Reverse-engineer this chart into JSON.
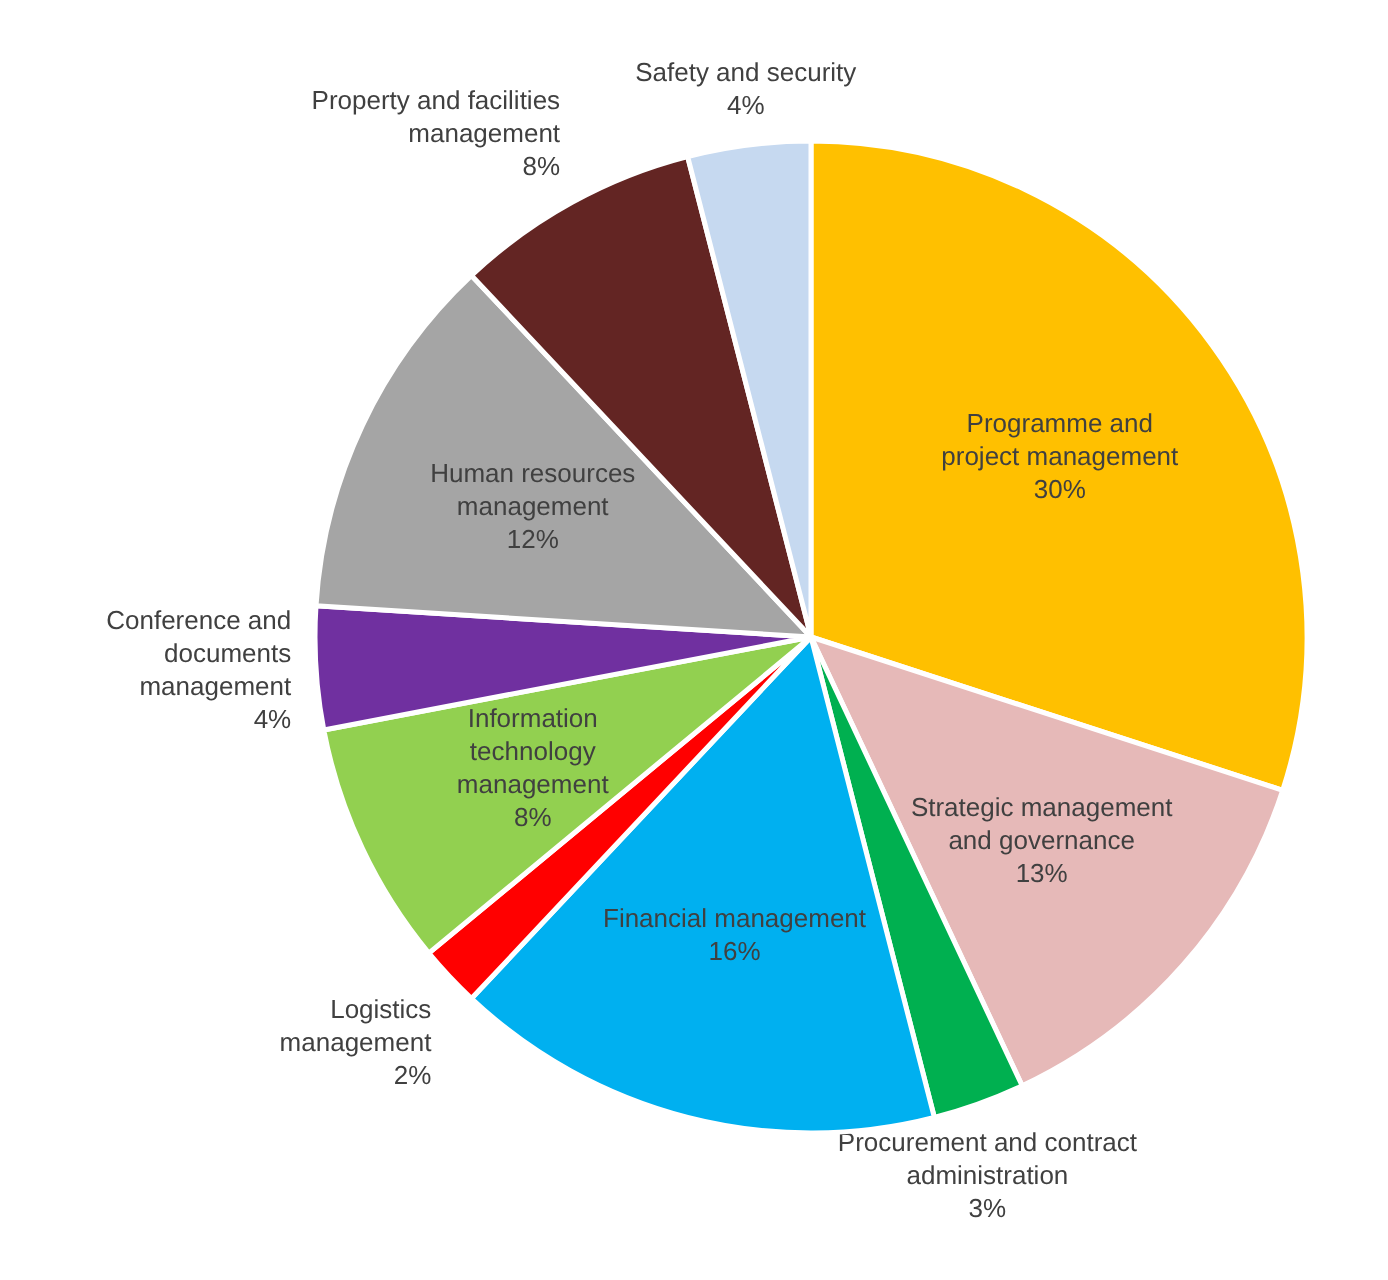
{
  "chart_data": {
    "type": "pie",
    "categories": [
      "Programme and project management",
      "Strategic management and governance",
      "Procurement and contract administration",
      "Financial management",
      "Logistics management",
      "Information technology management",
      "Conference and documents management",
      "Human resources management",
      "Property and facilities management",
      "Safety and security"
    ],
    "values": [
      30,
      13,
      3,
      16,
      2,
      8,
      4,
      12,
      8,
      4
    ],
    "value_labels": [
      "30%",
      "13%",
      "3%",
      "16%",
      "2%",
      "8%",
      "4%",
      "12%",
      "8%",
      "4%"
    ],
    "colors": [
      "#ffc000",
      "#e6b9b8",
      "#00b050",
      "#00b0f0",
      "#ff0000",
      "#92d050",
      "#7030a0",
      "#a5a5a5",
      "#632523",
      "#c6d9f0"
    ]
  }
}
